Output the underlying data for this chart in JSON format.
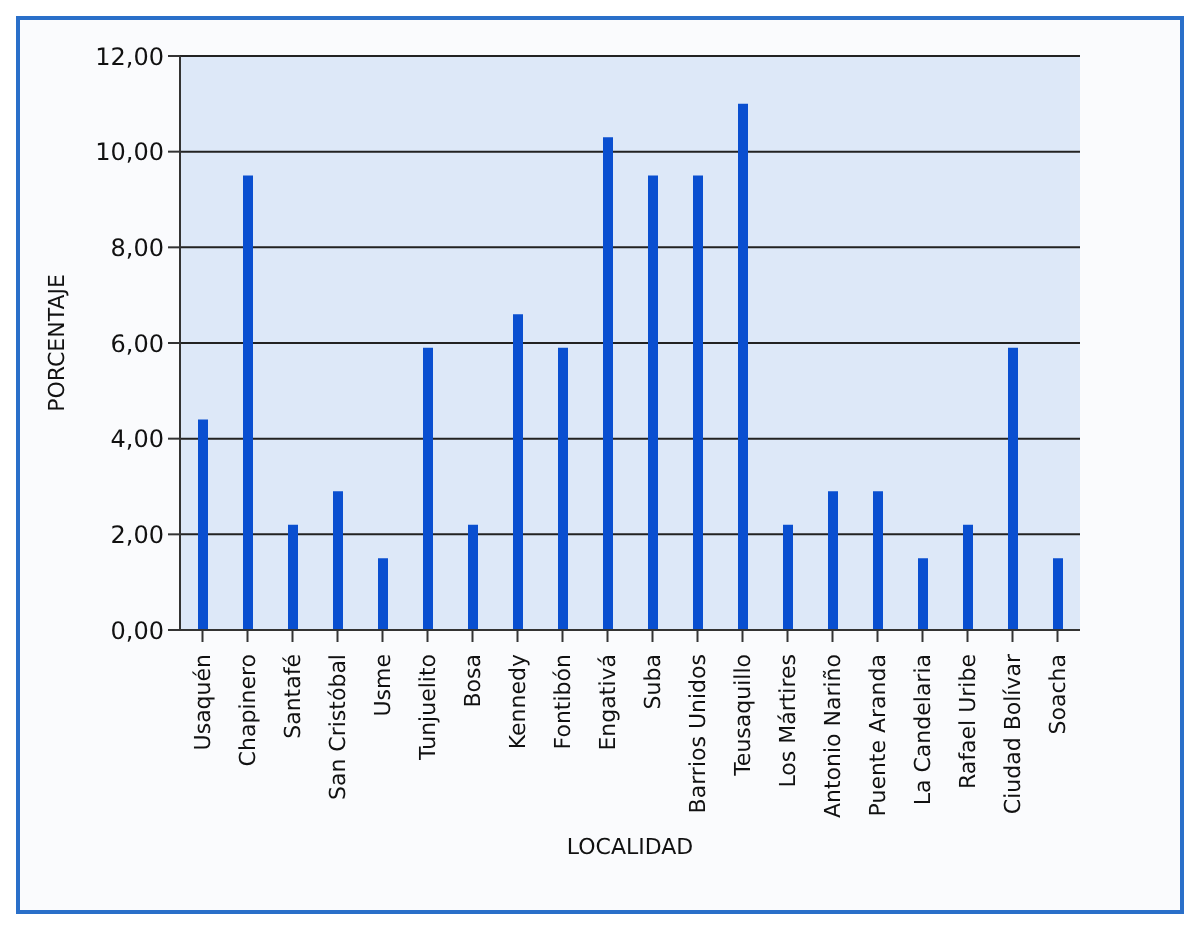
{
  "chart_data": {
    "type": "bar",
    "xlabel": "LOCALIDAD",
    "ylabel": "PORCENTAJE",
    "categories": [
      "Usaquén",
      "Chapinero",
      "Santafé",
      "San Cristóbal",
      "Usme",
      "Tunjuelito",
      "Bosa",
      "Kennedy",
      "Fontibón",
      "Engativá",
      "Suba",
      "Barrios Unidos",
      "Teusaquillo",
      "Los Mártires",
      "Antonio Nariño",
      "Puente Aranda",
      "La Candelaria",
      "Rafael Uribe",
      "Ciudad Bolívar",
      "Soacha"
    ],
    "values": [
      4.4,
      9.5,
      2.2,
      2.9,
      1.5,
      5.9,
      2.2,
      6.6,
      5.9,
      10.3,
      9.5,
      9.5,
      11.0,
      2.2,
      2.9,
      2.9,
      1.5,
      2.2,
      5.9,
      1.5
    ],
    "color": "#0a4fd0",
    "ylim": [
      0,
      12
    ],
    "yticks": [
      {
        "value": 0,
        "label": "0,00"
      },
      {
        "value": 2,
        "label": "2,00"
      },
      {
        "value": 4,
        "label": "4,00"
      },
      {
        "value": 6,
        "label": "6,00"
      },
      {
        "value": 8,
        "label": "8,00"
      },
      {
        "value": 10,
        "label": "10,00"
      },
      {
        "value": 12,
        "label": "12,00"
      }
    ],
    "grid": "y"
  }
}
